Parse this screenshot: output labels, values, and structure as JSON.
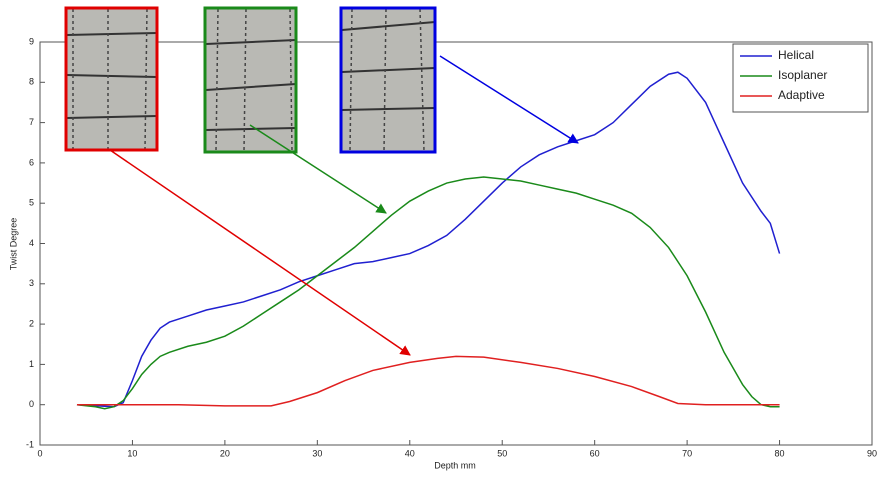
{
  "chart_data": {
    "type": "line",
    "x_label": "Depth mm",
    "y_label": "Twist Degree",
    "xlim": [
      0,
      90
    ],
    "xticks": [
      0,
      10,
      20,
      30,
      40,
      50,
      60,
      70,
      80,
      90
    ],
    "ylim": [
      -1,
      9
    ],
    "yticks": [
      -1,
      0,
      1,
      2,
      3,
      4,
      5,
      6,
      7,
      8,
      9
    ],
    "grid": false,
    "legend": "top-right",
    "series": [
      {
        "name": "Helical",
        "color": "#2020d0",
        "x": [
          4,
          8,
          9,
          10,
          11,
          12,
          13,
          14,
          16,
          18,
          20,
          22,
          24,
          26,
          28,
          30,
          32,
          34,
          36,
          38,
          40,
          42,
          44,
          46,
          48,
          50,
          52,
          54,
          56,
          58,
          60,
          62,
          64,
          66,
          68,
          69,
          70,
          72,
          74,
          76,
          78,
          79,
          80
        ],
        "values": [
          0,
          -0.05,
          0.05,
          0.6,
          1.2,
          1.6,
          1.9,
          2.05,
          2.2,
          2.35,
          2.45,
          2.55,
          2.7,
          2.85,
          3.05,
          3.2,
          3.35,
          3.5,
          3.55,
          3.65,
          3.75,
          3.95,
          4.2,
          4.6,
          5.05,
          5.5,
          5.9,
          6.2,
          6.4,
          6.55,
          6.7,
          7.0,
          7.45,
          7.9,
          8.2,
          8.25,
          8.1,
          7.5,
          6.5,
          5.5,
          4.8,
          4.5,
          3.75
        ]
      },
      {
        "name": "Isoplaner",
        "color": "#1a8a1a",
        "x": [
          4,
          6,
          7,
          8,
          9,
          10,
          11,
          12,
          13,
          14,
          16,
          18,
          20,
          22,
          24,
          26,
          28,
          30,
          32,
          34,
          36,
          38,
          40,
          42,
          44,
          46,
          48,
          50,
          52,
          54,
          56,
          58,
          60,
          62,
          64,
          66,
          68,
          70,
          72,
          74,
          76,
          77,
          78,
          79,
          80
        ],
        "values": [
          0,
          -0.05,
          -0.1,
          -0.05,
          0.1,
          0.4,
          0.75,
          1.0,
          1.2,
          1.3,
          1.45,
          1.55,
          1.7,
          1.95,
          2.25,
          2.55,
          2.85,
          3.2,
          3.55,
          3.9,
          4.3,
          4.7,
          5.05,
          5.3,
          5.5,
          5.6,
          5.65,
          5.6,
          5.55,
          5.45,
          5.35,
          5.25,
          5.1,
          4.95,
          4.75,
          4.4,
          3.9,
          3.2,
          2.3,
          1.3,
          0.5,
          0.2,
          0,
          -0.05,
          -0.05
        ]
      },
      {
        "name": "Adaptive",
        "color": "#e02020",
        "x": [
          4,
          8,
          10,
          15,
          20,
          25,
          27,
          30,
          33,
          36,
          40,
          43,
          45,
          48,
          52,
          56,
          60,
          64,
          67,
          69,
          72,
          76,
          80
        ],
        "values": [
          0,
          0,
          0,
          0,
          -0.03,
          -0.03,
          0.08,
          0.3,
          0.6,
          0.85,
          1.05,
          1.15,
          1.2,
          1.18,
          1.05,
          0.9,
          0.7,
          0.45,
          0.2,
          0.03,
          0,
          0,
          0
        ]
      }
    ]
  }
}
